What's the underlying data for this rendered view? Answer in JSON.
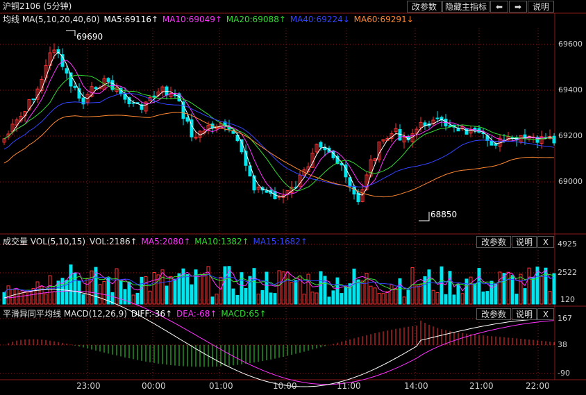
{
  "main": {
    "title": "沪铜2106 (5分钟)",
    "buttons": [
      "改参数",
      "隐藏主指标",
      "⬅",
      "➡",
      "说明"
    ],
    "indicator": "均线 MA(5,10,20,40,60)",
    "ma": [
      {
        "label": "MA5:69116↑",
        "color": "#ffffff"
      },
      {
        "label": "MA10:69049↑",
        "color": "#ff33ff"
      },
      {
        "label": "MA20:69088↑",
        "color": "#33dd33"
      },
      {
        "label": "MA40:69224↓",
        "color": "#3344ff"
      },
      {
        "label": "MA60:69291↓",
        "color": "#ff8833"
      }
    ],
    "yticks": [
      "69600",
      "69400",
      "69200",
      "69000"
    ],
    "high_label": "69690",
    "low_label": "68850"
  },
  "volume": {
    "indicator": "成交量 VOL(5,10,15)",
    "vol": "VOL:2186↑",
    "ma": [
      {
        "label": "MA5:2080↑",
        "color": "#ff33ff"
      },
      {
        "label": "MA10:1382↑",
        "color": "#33dd33"
      },
      {
        "label": "MA15:1682↑",
        "color": "#3344ff"
      }
    ],
    "buttons": [
      "改参数",
      "说明",
      "X"
    ],
    "yticks": [
      "4925",
      "2522",
      "120"
    ]
  },
  "macd": {
    "indicator": "平滑异同平均线 MACD(12,26,9)",
    "diff": {
      "label": "DIFF:-36↑",
      "color": "#ffffff"
    },
    "dea": {
      "label": "DEA:-68↑",
      "color": "#ff33ff"
    },
    "macd": {
      "label": "MACD:65↑",
      "color": "#33dd33"
    },
    "buttons": [
      "改参数",
      "说明",
      "X"
    ],
    "yticks": [
      "167",
      "38",
      "-90"
    ]
  },
  "xaxis": [
    "23:00",
    "00:00",
    "01:00",
    "10:00",
    "11:00",
    "14:00",
    "21:00",
    "22:00"
  ],
  "colors": {
    "up": "#ff3333",
    "down": "#00e5ee",
    "grid": "#8b1a1a"
  }
}
